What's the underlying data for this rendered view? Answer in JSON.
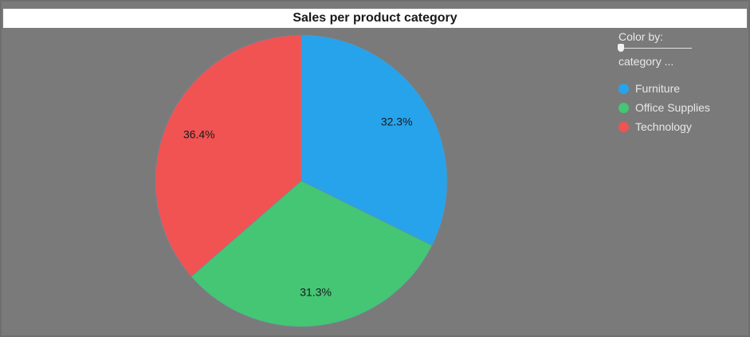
{
  "colors": {
    "Furniture": "#27a3ec",
    "Office Supplies": "#44c674",
    "Technology": "#f05352"
  },
  "legend": {
    "color_by_label": "Color by:",
    "color_by_value": "category ..."
  },
  "chart_data": {
    "type": "pie",
    "title": "Sales per product category",
    "categories": [
      "Furniture",
      "Office Supplies",
      "Technology"
    ],
    "values": [
      32.3,
      31.3,
      36.4
    ],
    "labels": [
      "32.3%",
      "31.3%",
      "36.4%"
    ],
    "legend_position": "top-right"
  }
}
